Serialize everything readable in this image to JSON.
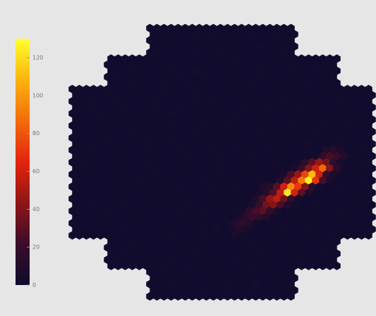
{
  "chart_data": {
    "type": "hexmap",
    "zlim": [
      0,
      130
    ],
    "zticks": [
      0,
      20,
      40,
      60,
      80,
      100,
      120
    ],
    "colormap": [
      "#0d0c2e",
      "#3a0d2a",
      "#8e1616",
      "#e3240e",
      "#f36c0a",
      "#fbb40c",
      "#ffff30"
    ],
    "values": [
      [
        2,
        3,
        2,
        2,
        4,
        2,
        2,
        3,
        2,
        2,
        2,
        3,
        2,
        2,
        4,
        2,
        2,
        2,
        3,
        2,
        2
      ],
      [
        2,
        2,
        3,
        2,
        2,
        2,
        4,
        2,
        2,
        3,
        2,
        2,
        2,
        2,
        3,
        2,
        2,
        4,
        2,
        2,
        2
      ],
      [
        3,
        2,
        2,
        2,
        3,
        2,
        2,
        2,
        2,
        4,
        2,
        2,
        3,
        2,
        2,
        2,
        2,
        2,
        3,
        2,
        2
      ],
      [
        2,
        2,
        2,
        4,
        2,
        2,
        3,
        2,
        2,
        2,
        2,
        3,
        2,
        2,
        2,
        5,
        2,
        2,
        2,
        2,
        3
      ],
      [
        2,
        3,
        2,
        2,
        2,
        2,
        2,
        3,
        2,
        2,
        4,
        2,
        2,
        2,
        3,
        2,
        2,
        2,
        2,
        3,
        2
      ],
      [
        2,
        2,
        3,
        2,
        2,
        2,
        4,
        2,
        2,
        2,
        3,
        2,
        2,
        2,
        2,
        3,
        2,
        2,
        4,
        2,
        2,
        2,
        2,
        3,
        2,
        2,
        2,
        3,
        2,
        2,
        2,
        2,
        3
      ],
      [
        3,
        2,
        2,
        2,
        2,
        3,
        2,
        2,
        2,
        4,
        2,
        2,
        2,
        3,
        2,
        2,
        2,
        2,
        3,
        2,
        2,
        2,
        4,
        2,
        2,
        2,
        3,
        2,
        2,
        2,
        2,
        3,
        2
      ],
      [
        2,
        2,
        2,
        3,
        2,
        2,
        2,
        2,
        3,
        2,
        2,
        2,
        5,
        2,
        2,
        2,
        3,
        2,
        2,
        2,
        2,
        3,
        2,
        2,
        2,
        2,
        3,
        2,
        2,
        4,
        2,
        2,
        2
      ],
      [
        2,
        3,
        2,
        2,
        2,
        4,
        2,
        2,
        2,
        2,
        3,
        2,
        2,
        2,
        3,
        2,
        2,
        2,
        2,
        4,
        2,
        2,
        3,
        2,
        2,
        2,
        2,
        3,
        2,
        2,
        2,
        2,
        3
      ],
      [
        2,
        2,
        2,
        3,
        2,
        2,
        2,
        2,
        3,
        2,
        2,
        4,
        2,
        2,
        2,
        3,
        2,
        2,
        2,
        2,
        3,
        2,
        2,
        2,
        4,
        2,
        2,
        2,
        3,
        2,
        2,
        2,
        2
      ],
      [
        2,
        3,
        2,
        2,
        2,
        3,
        2,
        2,
        2,
        4,
        2,
        2,
        2,
        3,
        2,
        2,
        2,
        2,
        3,
        2,
        2,
        2,
        3,
        2,
        2,
        2,
        2,
        4,
        2,
        2,
        2,
        3,
        2,
        2,
        2,
        2,
        3,
        2,
        2,
        2,
        2,
        3,
        2
      ],
      [
        3,
        2,
        2,
        2,
        2,
        3,
        2,
        2,
        2,
        2,
        3,
        2,
        2,
        4,
        2,
        2,
        2,
        3,
        2,
        2,
        2,
        2,
        2,
        3,
        2,
        2,
        2,
        2,
        3,
        2,
        2,
        2,
        4,
        2,
        2,
        2,
        3,
        2,
        2,
        2,
        2,
        2,
        3
      ],
      [
        2,
        2,
        2,
        4,
        2,
        2,
        3,
        2,
        2,
        2,
        2,
        2,
        3,
        2,
        2,
        2,
        2,
        2,
        3,
        2,
        4,
        2,
        2,
        2,
        2,
        3,
        2,
        2,
        2,
        2,
        3,
        2,
        2,
        2,
        3,
        2,
        2,
        2,
        4,
        2,
        2,
        2,
        2
      ],
      [
        2,
        2,
        3,
        2,
        2,
        2,
        2,
        3,
        2,
        2,
        2,
        4,
        2,
        2,
        2,
        3,
        2,
        2,
        2,
        2,
        3,
        2,
        2,
        2,
        3,
        2,
        2,
        4,
        2,
        2,
        2,
        2,
        3,
        2,
        2,
        2,
        2,
        3,
        2,
        2,
        2,
        2,
        3
      ],
      [
        3,
        2,
        2,
        2,
        3,
        2,
        2,
        2,
        2,
        2,
        3,
        2,
        2,
        2,
        5,
        2,
        2,
        2,
        3,
        2,
        2,
        2,
        2,
        3,
        2,
        2,
        2,
        2,
        3,
        2,
        2,
        4,
        2,
        2,
        2,
        3,
        2,
        2,
        2,
        2,
        3,
        2,
        2
      ],
      [
        2,
        2,
        2,
        3,
        2,
        2,
        4,
        2,
        2,
        2,
        2,
        3,
        2,
        2,
        2,
        2,
        3,
        2,
        2,
        2,
        4,
        2,
        2,
        3,
        2,
        2,
        2,
        2,
        2,
        3,
        2,
        2,
        2,
        3,
        2,
        2,
        2,
        4,
        2,
        2,
        2,
        3,
        2
      ],
      [
        2,
        3,
        2,
        2,
        2,
        2,
        2,
        3,
        2,
        2,
        4,
        2,
        2,
        2,
        3,
        2,
        2,
        2,
        2,
        3,
        2,
        2,
        4,
        2,
        2,
        2,
        3,
        2,
        2,
        2,
        2,
        3,
        2,
        2,
        2,
        2,
        3,
        2,
        2,
        3,
        2,
        2,
        2
      ],
      [
        2,
        2,
        2,
        3,
        2,
        2,
        2,
        2,
        4,
        2,
        2,
        2,
        3,
        2,
        2,
        2,
        2,
        3,
        2,
        2,
        2,
        3,
        2,
        2,
        2,
        2,
        4,
        2,
        2,
        3,
        2,
        2,
        2,
        2,
        3,
        2,
        2,
        2,
        2,
        3,
        2,
        2,
        3
      ],
      [
        3,
        2,
        2,
        2,
        2,
        3,
        2,
        2,
        2,
        2,
        2,
        3,
        2,
        2,
        4,
        2,
        2,
        2,
        2,
        3,
        2,
        2,
        2,
        3,
        2,
        2,
        2,
        2,
        3,
        2,
        2,
        2,
        4,
        2,
        2,
        2,
        3,
        2,
        4,
        2,
        2,
        2,
        2
      ],
      [
        2,
        2,
        3,
        2,
        2,
        2,
        4,
        2,
        2,
        2,
        3,
        2,
        2,
        2,
        2,
        3,
        2,
        2,
        2,
        2,
        4,
        2,
        2,
        2,
        3,
        2,
        2,
        2,
        2,
        3,
        2,
        2,
        2,
        5,
        2,
        2,
        2,
        3,
        2,
        2,
        2,
        3,
        2
      ],
      [
        2,
        2,
        2,
        3,
        2,
        2,
        2,
        2,
        3,
        2,
        2,
        4,
        2,
        2,
        2,
        3,
        2,
        2,
        2,
        2,
        3,
        2,
        2,
        3,
        2,
        2,
        2,
        2,
        4,
        2,
        2,
        2,
        2,
        3,
        2,
        2,
        10,
        12,
        8,
        2,
        2,
        3,
        2
      ],
      [
        3,
        2,
        2,
        2,
        2,
        3,
        2,
        2,
        2,
        2,
        2,
        2,
        3,
        2,
        2,
        2,
        4,
        2,
        2,
        2,
        3,
        2,
        2,
        2,
        2,
        3,
        2,
        2,
        2,
        2,
        3,
        2,
        2,
        2,
        4,
        18,
        25,
        20,
        10,
        3,
        2,
        2,
        2
      ],
      [
        2,
        2,
        3,
        2,
        2,
        2,
        2,
        4,
        2,
        2,
        2,
        3,
        2,
        2,
        2,
        2,
        3,
        2,
        2,
        2,
        2,
        3,
        2,
        2,
        2,
        4,
        2,
        2,
        2,
        3,
        2,
        2,
        3,
        15,
        30,
        45,
        35,
        15,
        5,
        2,
        2,
        2,
        3
      ],
      [
        2,
        3,
        2,
        2,
        2,
        3,
        2,
        2,
        2,
        2,
        4,
        2,
        2,
        2,
        3,
        2,
        2,
        2,
        2,
        3,
        2,
        2,
        2,
        3,
        2,
        2,
        2,
        2,
        3,
        2,
        2,
        6,
        20,
        40,
        60,
        85,
        40,
        12,
        4,
        2,
        2,
        3,
        2
      ],
      [
        2,
        2,
        2,
        3,
        2,
        2,
        2,
        2,
        3,
        2,
        2,
        2,
        4,
        2,
        2,
        2,
        3,
        2,
        2,
        2,
        2,
        3,
        2,
        2,
        2,
        2,
        3,
        2,
        2,
        2,
        8,
        25,
        45,
        75,
        110,
        60,
        20,
        6,
        2,
        2,
        3,
        2,
        2
      ],
      [
        3,
        2,
        2,
        2,
        2,
        3,
        2,
        2,
        2,
        4,
        2,
        2,
        2,
        3,
        2,
        2,
        2,
        2,
        3,
        2,
        2,
        2,
        4,
        2,
        2,
        2,
        3,
        2,
        2,
        10,
        30,
        55,
        90,
        125,
        70,
        25,
        8,
        2,
        2,
        2,
        2,
        3,
        2
      ],
      [
        2,
        2,
        3,
        2,
        2,
        2,
        2,
        3,
        2,
        2,
        2,
        3,
        2,
        2,
        2,
        4,
        2,
        2,
        2,
        2,
        3,
        2,
        2,
        3,
        2,
        2,
        2,
        8,
        12,
        30,
        60,
        95,
        70,
        40,
        15,
        5,
        2,
        2,
        3,
        2,
        2,
        2,
        2
      ],
      [
        2,
        2,
        2,
        2,
        3,
        2,
        2,
        2,
        4,
        2,
        2,
        2,
        3,
        2,
        2,
        2,
        2,
        3,
        2,
        2,
        2,
        2,
        3,
        2,
        2,
        2,
        6,
        12,
        28,
        55,
        122,
        60,
        30,
        10,
        3,
        2,
        2,
        2,
        2,
        3,
        2,
        2,
        2
      ],
      [
        3,
        2,
        2,
        2,
        2,
        2,
        3,
        2,
        2,
        2,
        2,
        4,
        2,
        2,
        2,
        3,
        2,
        2,
        2,
        2,
        3,
        2,
        2,
        2,
        3,
        2,
        8,
        25,
        45,
        55,
        35,
        15,
        5,
        2,
        2,
        2,
        3,
        2,
        2,
        2,
        2,
        3,
        2
      ],
      [
        2,
        2,
        3,
        2,
        2,
        2,
        2,
        3,
        2,
        2,
        2,
        2,
        2,
        3,
        2,
        2,
        4,
        2,
        2,
        2,
        2,
        3,
        2,
        2,
        2,
        6,
        20,
        35,
        40,
        25,
        10,
        4,
        2,
        2,
        3,
        2,
        2,
        2,
        2,
        3,
        2,
        2,
        2
      ],
      [
        2,
        3,
        2,
        2,
        2,
        4,
        2,
        2,
        2,
        2,
        3,
        2,
        2,
        2,
        2,
        3,
        2,
        2,
        2,
        4,
        2,
        2,
        2,
        3,
        5,
        15,
        25,
        30,
        18,
        6,
        2,
        2,
        2,
        3,
        2,
        2,
        2,
        2,
        3,
        2,
        2,
        2,
        2
      ],
      [
        2,
        2,
        2,
        3,
        2,
        2,
        2,
        2,
        3,
        2,
        2,
        2,
        4,
        2,
        2,
        2,
        2,
        3,
        2,
        2,
        2,
        3,
        2,
        5,
        12,
        20,
        18,
        10,
        4,
        2,
        2,
        3,
        2,
        2,
        2,
        2,
        3,
        2,
        2,
        2,
        2,
        3,
        2
      ],
      [
        3,
        2,
        2,
        2,
        2,
        3,
        2,
        2,
        2,
        2,
        2,
        3,
        2,
        2,
        2,
        2,
        4,
        2,
        2,
        2,
        2,
        2,
        4,
        10,
        15,
        12,
        5,
        2,
        2,
        2,
        3,
        2,
        2,
        2,
        3,
        2,
        2,
        2,
        2,
        3,
        2,
        2,
        2
      ],
      [
        2,
        2,
        3,
        2,
        2,
        2,
        2,
        4,
        2,
        2,
        2,
        2,
        2,
        3,
        2,
        2,
        2,
        2,
        3,
        2,
        5,
        2,
        3,
        10,
        8,
        4,
        2,
        2,
        2,
        3,
        2,
        2,
        2,
        3,
        2,
        2,
        2,
        4,
        2,
        2,
        2,
        2,
        3
      ],
      [
        2,
        3,
        2,
        2,
        2,
        3,
        2,
        2,
        2,
        2,
        3,
        2,
        2,
        2,
        4,
        2,
        2,
        2,
        2,
        3,
        2,
        2,
        2,
        6,
        4,
        2,
        2,
        3,
        2,
        2,
        2,
        2,
        3,
        2,
        2,
        2,
        2,
        3,
        2,
        2,
        2,
        2,
        2
      ],
      [
        2,
        2,
        2,
        3,
        2,
        2,
        2,
        4,
        2,
        2,
        2,
        3,
        2,
        2,
        2,
        2,
        3,
        2,
        2,
        2,
        4,
        2,
        2,
        2,
        3,
        2,
        2,
        2,
        2,
        3,
        2,
        2,
        2
      ],
      [
        3,
        2,
        2,
        2,
        2,
        3,
        2,
        2,
        2,
        2,
        4,
        2,
        2,
        2,
        3,
        2,
        2,
        2,
        2,
        3,
        2,
        2,
        2,
        4,
        2,
        2,
        2,
        3,
        2,
        2,
        2,
        2,
        3
      ],
      [
        2,
        2,
        3,
        2,
        2,
        2,
        2,
        3,
        2,
        2,
        2,
        2,
        4,
        2,
        2,
        2,
        3,
        2,
        2,
        2,
        2,
        3,
        2,
        2,
        2,
        2,
        3,
        2,
        2,
        2,
        4,
        2,
        2
      ],
      [
        2,
        3,
        2,
        2,
        2,
        4,
        2,
        2,
        2,
        3,
        2,
        2,
        2,
        2,
        3,
        2,
        2,
        2,
        4,
        2,
        2,
        2,
        3,
        2,
        2,
        2,
        2,
        3,
        2,
        2,
        2,
        2,
        2
      ],
      [
        2,
        2,
        2,
        3,
        2,
        2,
        2,
        2,
        3,
        2,
        2,
        4,
        2,
        2,
        2,
        3,
        2,
        2,
        2,
        2,
        3,
        2,
        2,
        2,
        3,
        2,
        2,
        4,
        2,
        2,
        2,
        3,
        2
      ],
      [
        2,
        2,
        3,
        2,
        2,
        2,
        4,
        2,
        2,
        3,
        2,
        2,
        2,
        2,
        3,
        2,
        2,
        4,
        2,
        2,
        2
      ],
      [
        3,
        2,
        2,
        2,
        3,
        2,
        2,
        2,
        2,
        4,
        2,
        2,
        3,
        2,
        2,
        2,
        2,
        2,
        3,
        2,
        2
      ],
      [
        2,
        2,
        2,
        4,
        2,
        2,
        3,
        2,
        2,
        2,
        2,
        3,
        2,
        2,
        2,
        5,
        2,
        2,
        2,
        2,
        3
      ],
      [
        2,
        3,
        2,
        2,
        2,
        2,
        2,
        3,
        2,
        2,
        4,
        2,
        2,
        2,
        3,
        2,
        2,
        2,
        2,
        3,
        2
      ],
      [
        2,
        3,
        2,
        2,
        4,
        2,
        2,
        3,
        2,
        2,
        2,
        3,
        2,
        2,
        4,
        2,
        2,
        2,
        3,
        2,
        2
      ]
    ]
  }
}
